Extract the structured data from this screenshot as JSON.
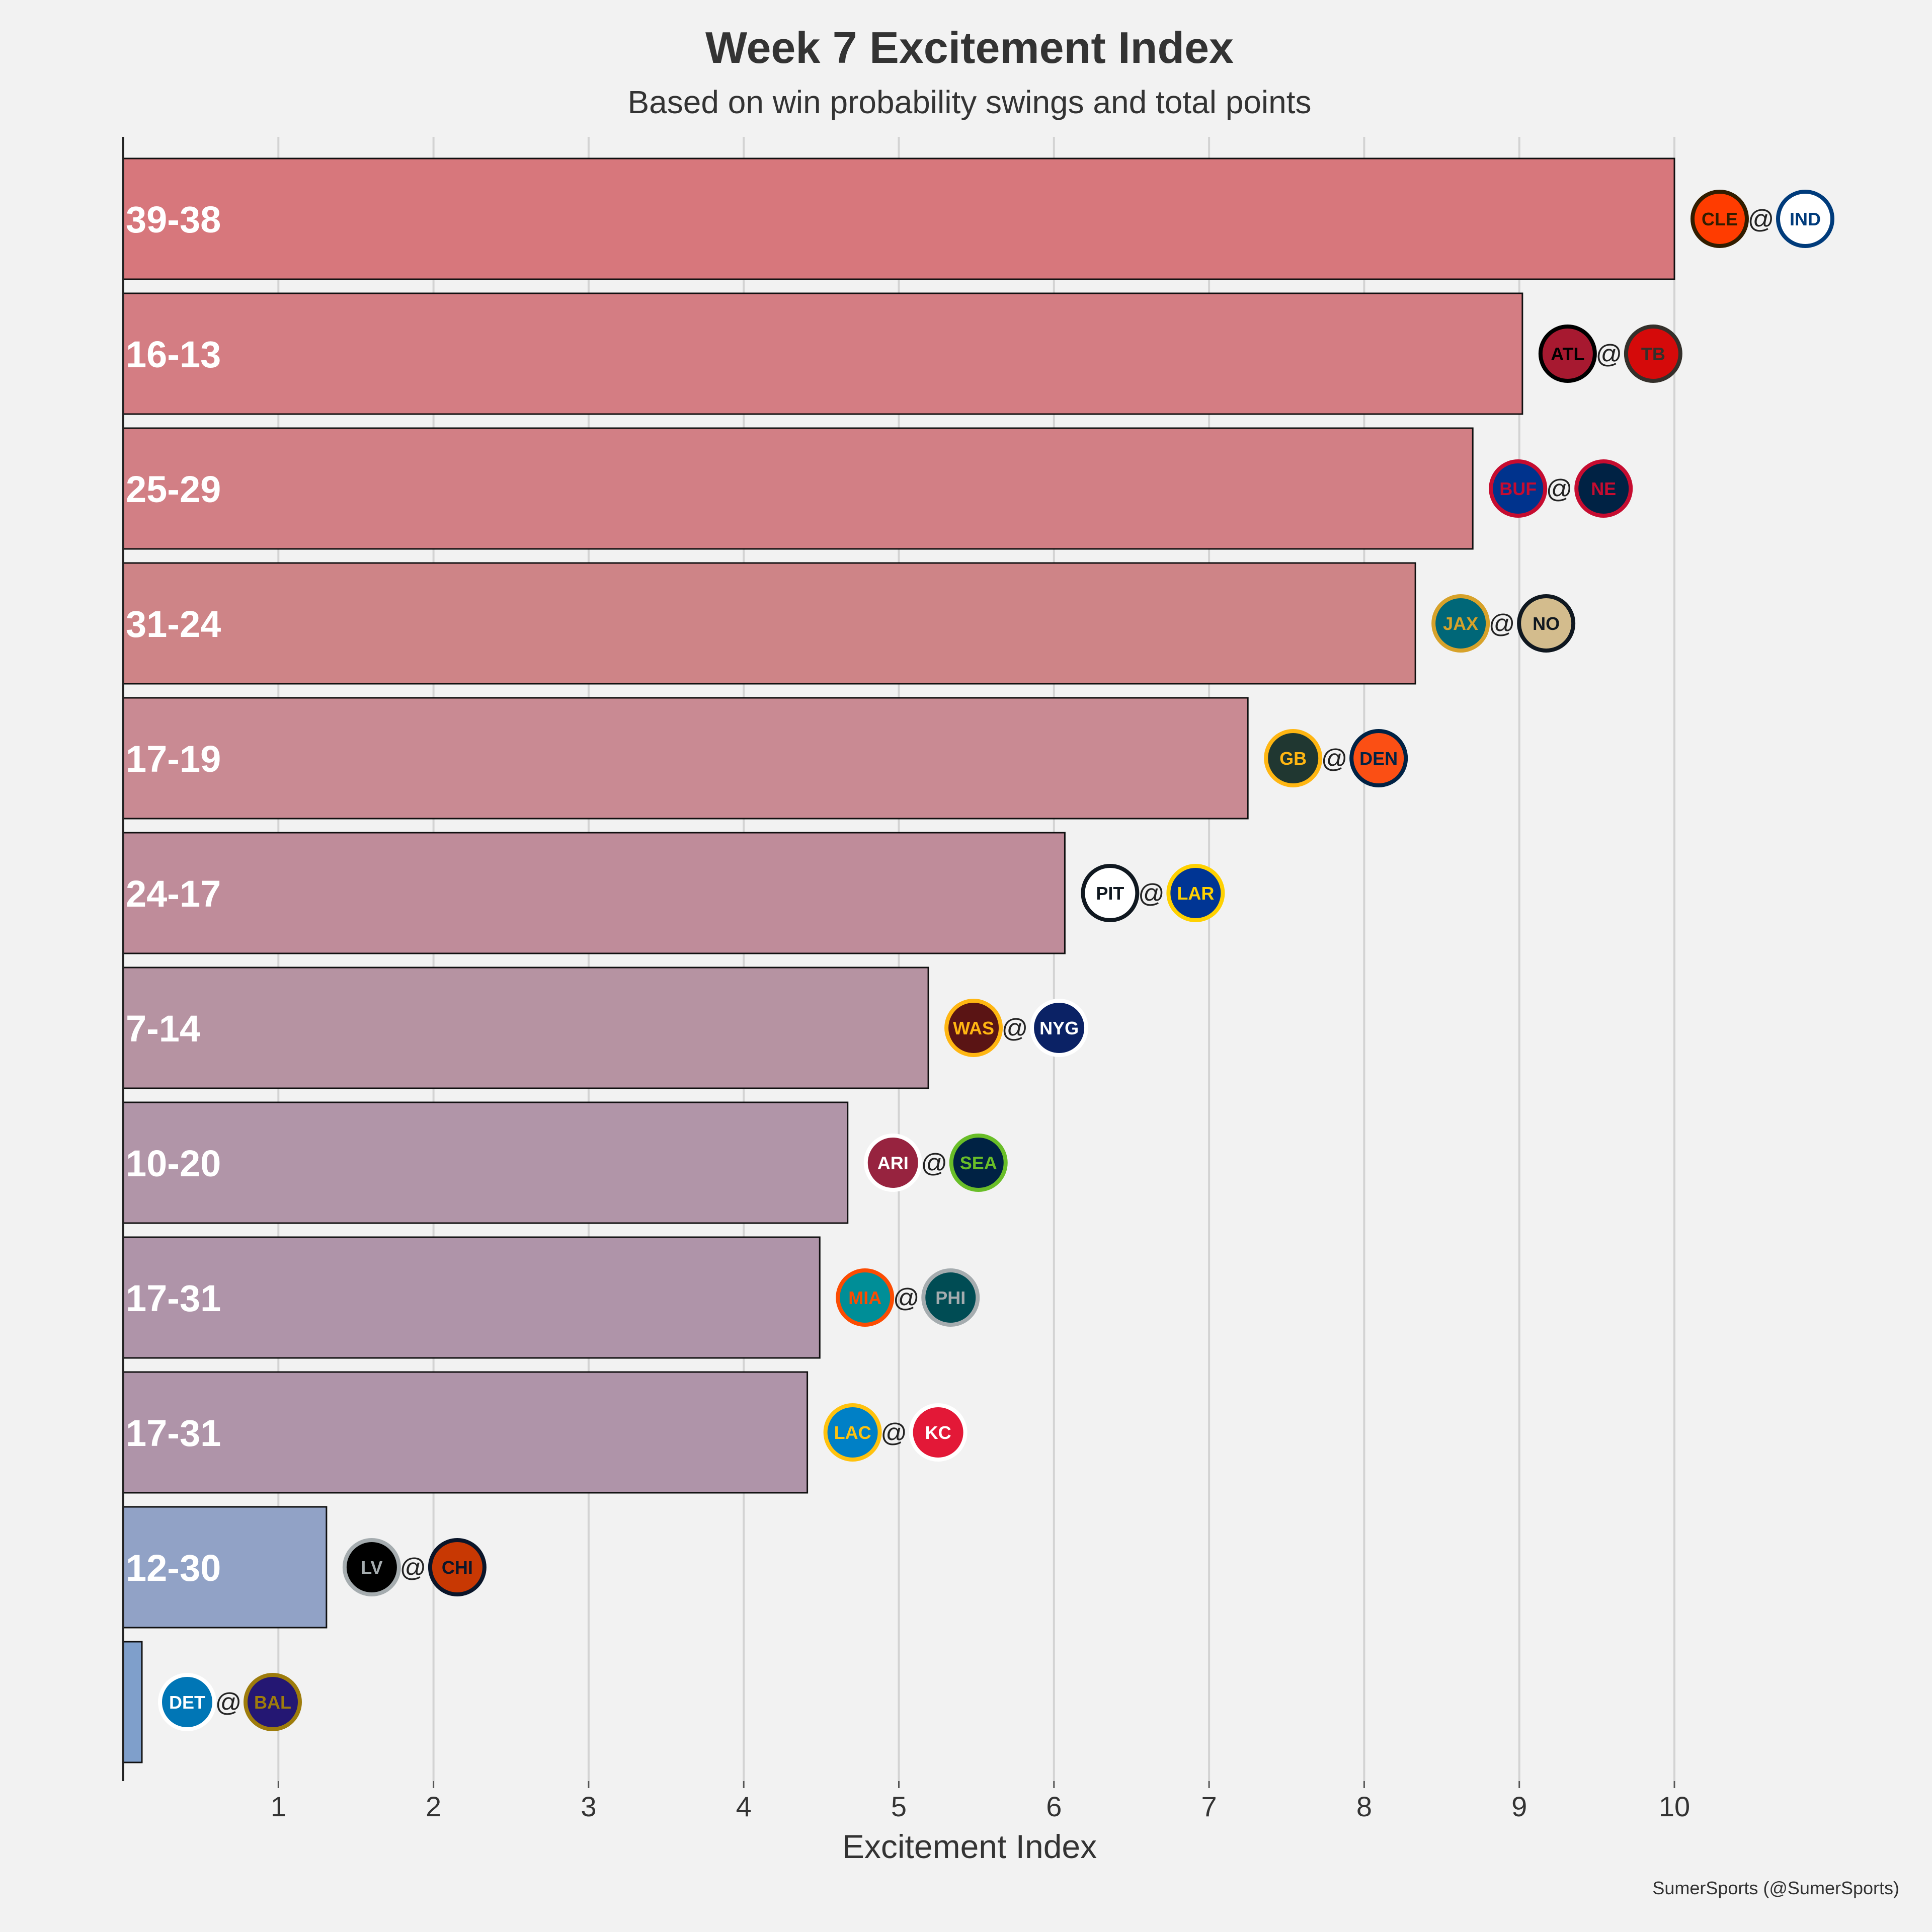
{
  "chart_data": {
    "type": "bar",
    "orientation": "horizontal",
    "title": "Week 7 Excitement Index",
    "subtitle": "Based on win probability swings and total points",
    "xlabel": "Excitement Index",
    "ylabel": "",
    "xlim": [
      0,
      11.1
    ],
    "xticks": [
      1,
      2,
      3,
      4,
      5,
      6,
      7,
      8,
      9,
      10
    ],
    "grid": "vertical",
    "credit": "SumerSports (@SumerSports)",
    "games": [
      {
        "score": "39-38",
        "away": "CLE",
        "home": "IND",
        "value": 10.0,
        "color": "#d7777c"
      },
      {
        "score": "16-13",
        "away": "ATL",
        "home": "TB",
        "value": 9.02,
        "color": "#d47d83"
      },
      {
        "score": "25-29",
        "away": "BUF",
        "home": "NE",
        "value": 8.7,
        "color": "#d27f85"
      },
      {
        "score": "31-24",
        "away": "JAX",
        "home": "NO",
        "value": 8.33,
        "color": "#ce8487"
      },
      {
        "score": "17-19",
        "away": "GB",
        "home": "DEN",
        "value": 7.25,
        "color": "#c98a93"
      },
      {
        "score": "24-17",
        "away": "PIT",
        "home": "LAR",
        "value": 6.07,
        "color": "#bf8c9a"
      },
      {
        "score": "7-14",
        "away": "WAS",
        "home": "NYG",
        "value": 5.19,
        "color": "#b693a2"
      },
      {
        "score": "10-20",
        "away": "ARI",
        "home": "SEA",
        "value": 4.67,
        "color": "#b195a8"
      },
      {
        "score": "17-31",
        "away": "MIA",
        "home": "PHI",
        "value": 4.49,
        "color": "#af94a9"
      },
      {
        "score": "17-31",
        "away": "LAC",
        "home": "KC",
        "value": 4.41,
        "color": "#af94a9"
      },
      {
        "score": "12-30",
        "away": "LV",
        "home": "CHI",
        "value": 1.31,
        "color": "#91a2c6"
      },
      {
        "score": "",
        "away": "DET",
        "home": "BAL",
        "value": 0.12,
        "color": "#7f9fcb"
      }
    ],
    "separator": "@"
  },
  "team_colors": {
    "CLE": {
      "bg": "#ff3c00",
      "fg": "#311d00"
    },
    "IND": {
      "bg": "#ffffff",
      "fg": "#003b7b"
    },
    "ATL": {
      "bg": "#a71930",
      "fg": "#000000"
    },
    "TB": {
      "bg": "#d50a0a",
      "fg": "#34302b"
    },
    "BUF": {
      "bg": "#00338d",
      "fg": "#c60c30"
    },
    "NE": {
      "bg": "#002244",
      "fg": "#c60c30"
    },
    "JAX": {
      "bg": "#006778",
      "fg": "#d7a22a"
    },
    "NO": {
      "bg": "#d3bc8d",
      "fg": "#101820"
    },
    "GB": {
      "bg": "#203731",
      "fg": "#ffb612"
    },
    "DEN": {
      "bg": "#fb4f14",
      "fg": "#002244"
    },
    "PIT": {
      "bg": "#ffffff",
      "fg": "#101820"
    },
    "LAR": {
      "bg": "#003594",
      "fg": "#ffd100"
    },
    "WAS": {
      "bg": "#5a1414",
      "fg": "#ffb612"
    },
    "NYG": {
      "bg": "#0b2265",
      "fg": "#ffffff"
    },
    "ARI": {
      "bg": "#97233f",
      "fg": "#ffffff"
    },
    "SEA": {
      "bg": "#002244",
      "fg": "#69be28"
    },
    "MIA": {
      "bg": "#008e97",
      "fg": "#fc4c02"
    },
    "PHI": {
      "bg": "#004c54",
      "fg": "#a5acaf"
    },
    "LAC": {
      "bg": "#0080c6",
      "fg": "#ffc20e"
    },
    "KC": {
      "bg": "#e31837",
      "fg": "#ffffff"
    },
    "LV": {
      "bg": "#000000",
      "fg": "#a5acaf"
    },
    "CHI": {
      "bg": "#c83803",
      "fg": "#0b162a"
    },
    "DET": {
      "bg": "#0076b6",
      "fg": "#ffffff"
    },
    "BAL": {
      "bg": "#241773",
      "fg": "#9e7c0c"
    }
  }
}
